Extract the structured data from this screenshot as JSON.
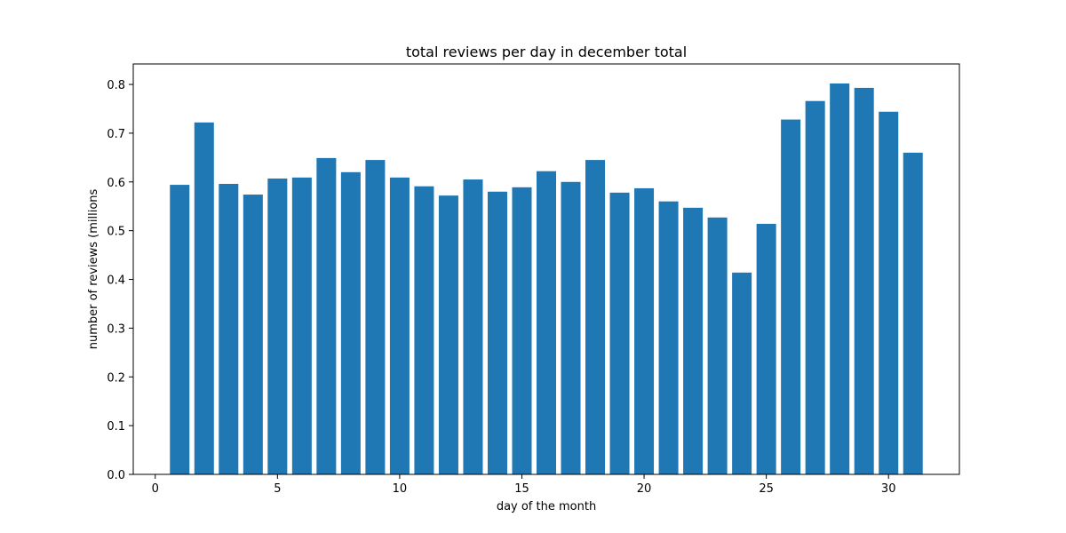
{
  "chart_data": {
    "type": "bar",
    "title": "total reviews per day in december total",
    "xlabel": "day of the month",
    "ylabel": "number of reviews (millions",
    "x": [
      1,
      2,
      3,
      4,
      5,
      6,
      7,
      8,
      9,
      10,
      11,
      12,
      13,
      14,
      15,
      16,
      17,
      18,
      19,
      20,
      21,
      22,
      23,
      24,
      25,
      26,
      27,
      28,
      29,
      30,
      31
    ],
    "values": [
      0.594,
      0.722,
      0.596,
      0.574,
      0.607,
      0.609,
      0.649,
      0.62,
      0.645,
      0.609,
      0.591,
      0.572,
      0.605,
      0.58,
      0.589,
      0.622,
      0.6,
      0.645,
      0.578,
      0.587,
      0.56,
      0.547,
      0.527,
      0.414,
      0.514,
      0.728,
      0.766,
      0.802,
      0.793,
      0.744,
      0.66
    ],
    "xlim": [
      -0.9,
      32.9
    ],
    "ylim": [
      0,
      0.842
    ],
    "xticks": [
      0,
      5,
      10,
      15,
      20,
      25,
      30
    ],
    "yticks": [
      0.0,
      0.1,
      0.2,
      0.3,
      0.4,
      0.5,
      0.6,
      0.7,
      0.8
    ],
    "ytick_labels": [
      "0.0",
      "0.1",
      "0.2",
      "0.3",
      "0.4",
      "0.5",
      "0.6",
      "0.7",
      "0.8"
    ],
    "grid": false,
    "bar_color": "#1f77b4"
  }
}
